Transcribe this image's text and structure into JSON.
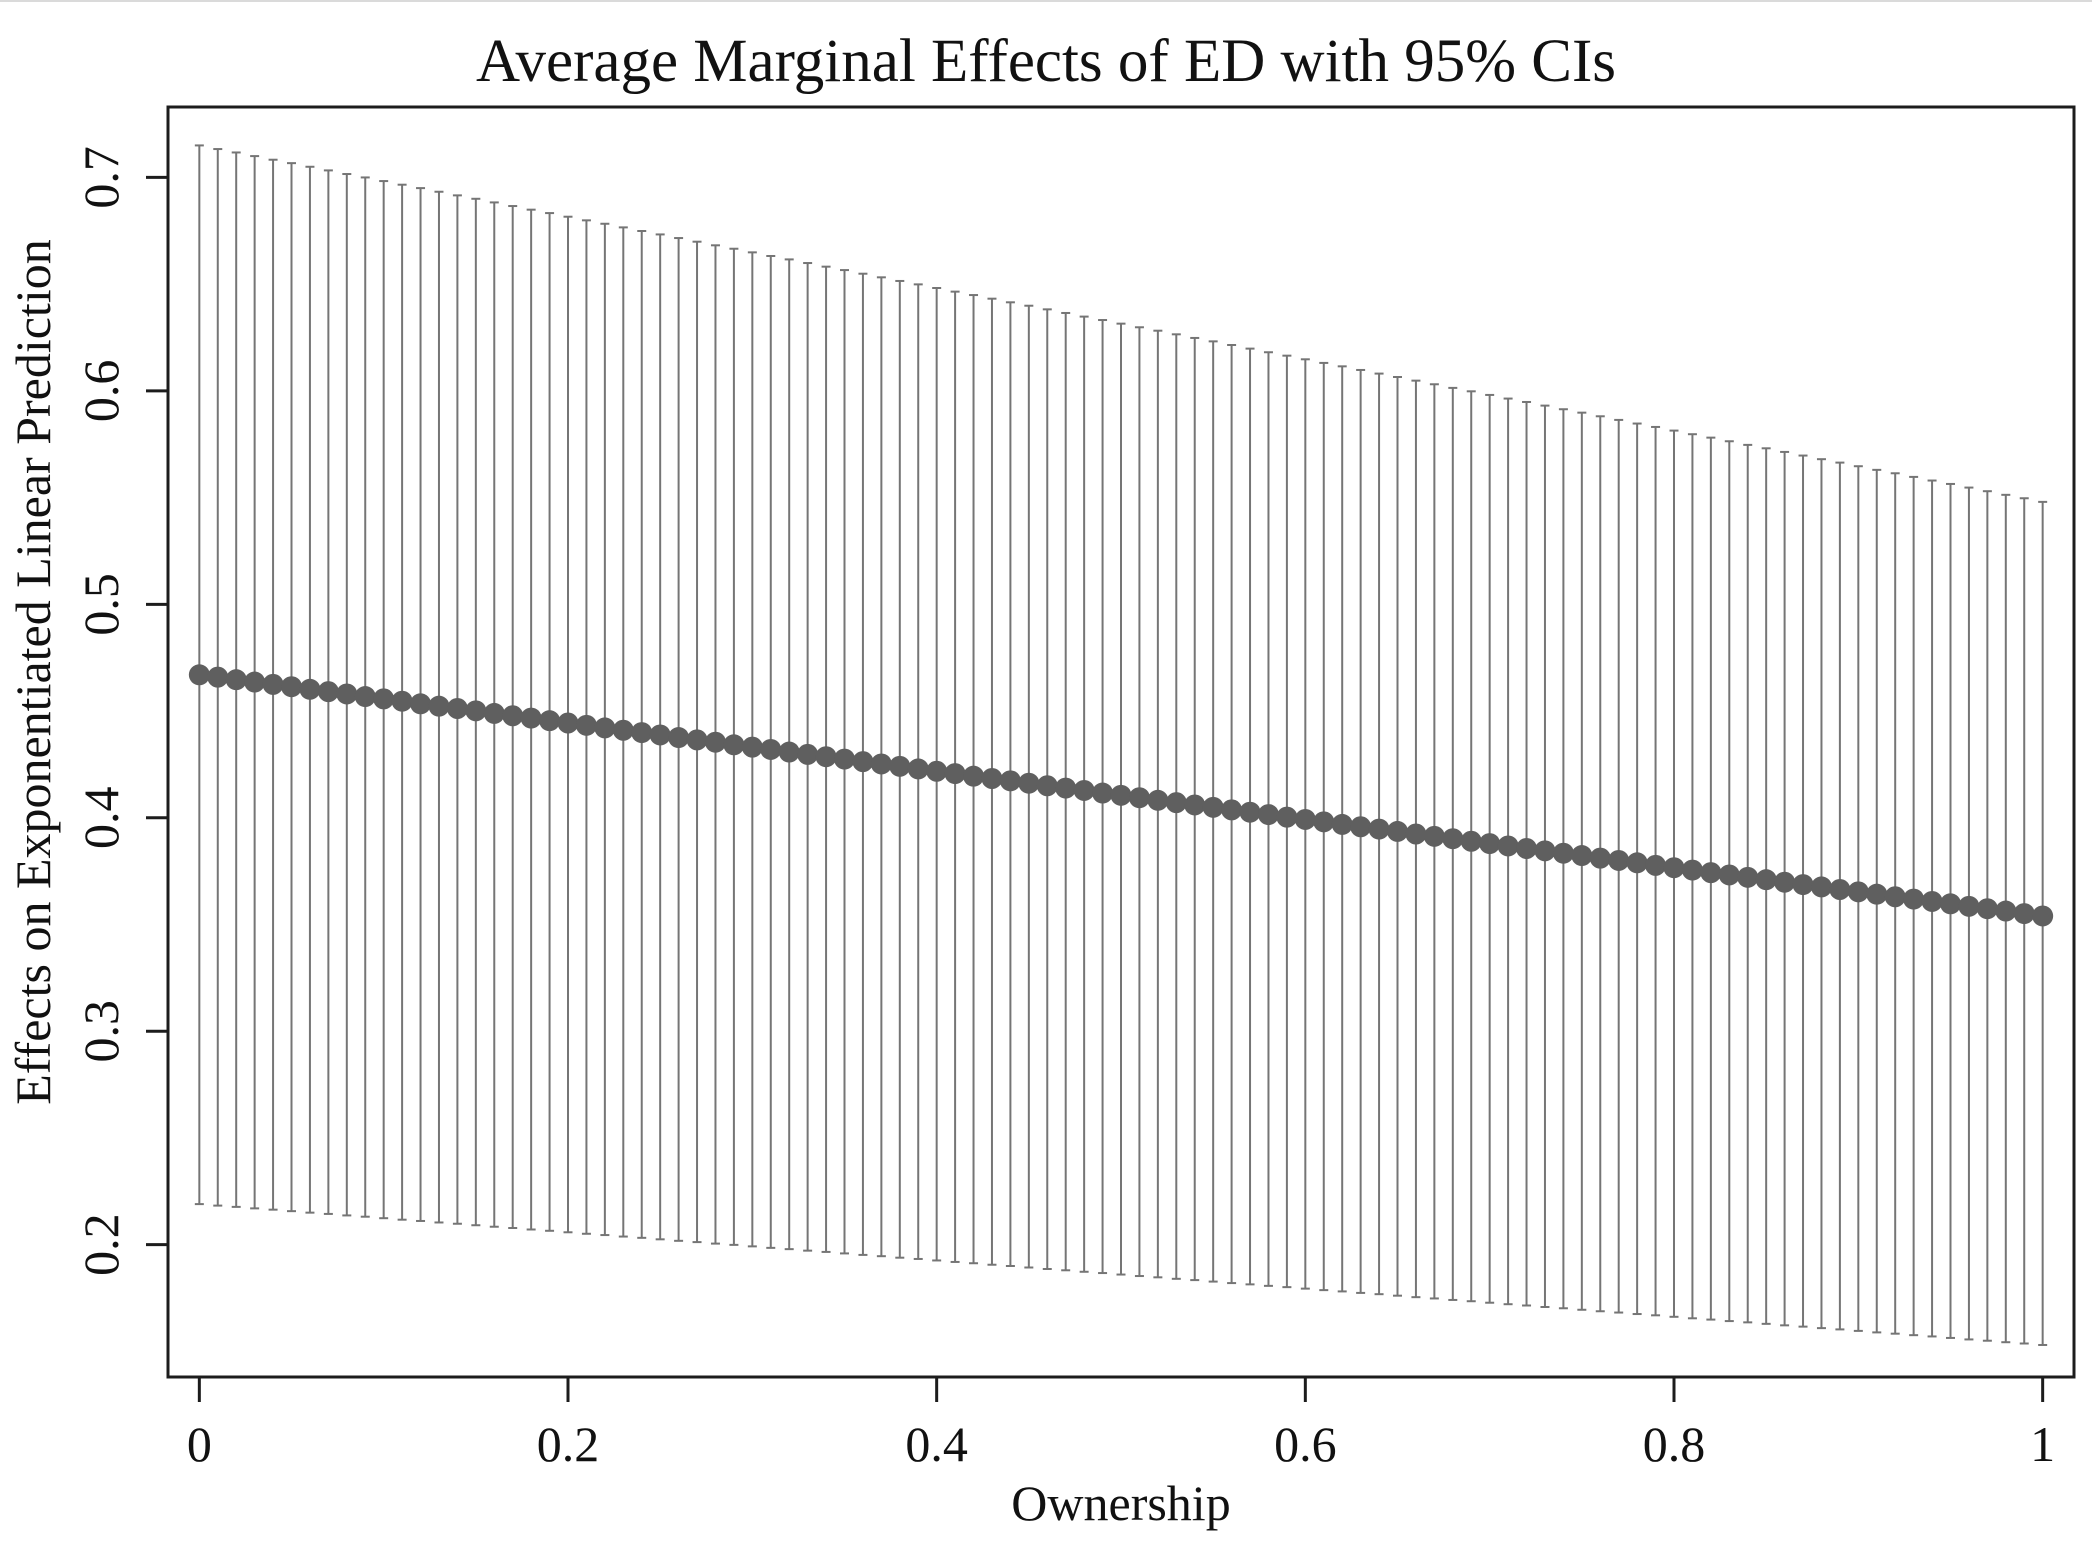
{
  "figure": {
    "title": "Average Marginal Effects of ED with 95% CIs"
  },
  "chart_data": {
    "type": "scatter",
    "subtype": "point_estimates_with_95ci_spikes",
    "title": "Average Marginal Effects of ED with 95% CIs",
    "xlabel": "Ownership",
    "ylabel": "Effects on Exponentiated Linear Prediction",
    "xlim": [
      -0.017,
      1.017
    ],
    "ylim": [
      0.138,
      0.733
    ],
    "grid": false,
    "legend": false,
    "x_ticks": [
      0,
      0.2,
      0.4,
      0.6,
      0.8,
      1
    ],
    "x_tick_labels": [
      "0",
      "0.2",
      "0.4",
      "0.6",
      "0.8",
      "1"
    ],
    "y_ticks": [
      0.7,
      0.6,
      0.5,
      0.4,
      0.3,
      0.2
    ],
    "y_tick_labels": [
      "0.7",
      "0.6",
      "0.5",
      "0.4",
      "0.3",
      "0.2"
    ],
    "n_points": 101,
    "colors": {
      "dot": "#5f5f5f",
      "ci_spike": "#757575",
      "axis": "#1c1c1c",
      "text": "#111111"
    },
    "x": [
      0,
      0.01,
      0.02,
      0.03,
      0.04,
      0.05,
      0.06,
      0.07,
      0.08,
      0.09,
      0.1,
      0.11,
      0.12,
      0.13,
      0.14,
      0.15,
      0.16,
      0.17,
      0.18,
      0.19,
      0.2,
      0.21,
      0.22,
      0.23,
      0.24,
      0.25,
      0.26,
      0.27,
      0.28,
      0.29,
      0.3,
      0.31,
      0.32,
      0.33,
      0.34,
      0.35,
      0.36,
      0.37,
      0.38,
      0.39,
      0.4,
      0.41,
      0.42,
      0.43,
      0.44,
      0.45,
      0.46,
      0.47,
      0.48,
      0.49,
      0.5,
      0.51,
      0.52,
      0.53,
      0.54,
      0.55,
      0.56,
      0.57,
      0.58,
      0.59,
      0.6,
      0.61,
      0.62,
      0.63,
      0.64,
      0.65,
      0.66,
      0.67,
      0.68,
      0.69,
      0.7,
      0.71,
      0.72,
      0.73,
      0.74,
      0.75,
      0.76,
      0.77,
      0.78,
      0.79,
      0.8,
      0.81,
      0.82,
      0.83,
      0.84,
      0.85,
      0.86,
      0.87,
      0.88,
      0.89,
      0.9,
      0.91,
      0.92,
      0.93,
      0.94,
      0.95,
      0.96,
      0.97,
      0.98,
      0.99,
      1
    ],
    "series": [
      {
        "name": "estimate",
        "style": "dots",
        "values": [
          0.467,
          0.4659,
          0.4647,
          0.4636,
          0.4625,
          0.4614,
          0.4602,
          0.4591,
          0.458,
          0.4568,
          0.4557,
          0.4546,
          0.4534,
          0.4523,
          0.4512,
          0.4501,
          0.4489,
          0.4478,
          0.4467,
          0.4455,
          0.4444,
          0.4433,
          0.4421,
          0.441,
          0.4399,
          0.4388,
          0.4376,
          0.4365,
          0.4354,
          0.4342,
          0.4331,
          0.432,
          0.4308,
          0.4297,
          0.4286,
          0.4275,
          0.4263,
          0.4252,
          0.4241,
          0.4229,
          0.4218,
          0.4207,
          0.4195,
          0.4184,
          0.4173,
          0.4162,
          0.415,
          0.4139,
          0.4128,
          0.4116,
          0.4105,
          0.4094,
          0.4082,
          0.4071,
          0.406,
          0.4049,
          0.4037,
          0.4026,
          0.4015,
          0.4003,
          0.3992,
          0.3981,
          0.3969,
          0.3958,
          0.3947,
          0.3936,
          0.3924,
          0.3913,
          0.3902,
          0.389,
          0.3879,
          0.3868,
          0.3856,
          0.3845,
          0.3834,
          0.3823,
          0.3811,
          0.38,
          0.3789,
          0.3777,
          0.3766,
          0.3755,
          0.3743,
          0.3732,
          0.3721,
          0.371,
          0.3698,
          0.3687,
          0.3676,
          0.3664,
          0.3653,
          0.3642,
          0.363,
          0.3619,
          0.3608,
          0.3597,
          0.3585,
          0.3574,
          0.3563,
          0.3551,
          0.354
        ]
      },
      {
        "name": "ci_upper_95",
        "style": "spike_top",
        "values": [
          0.715,
          0.7133,
          0.7117,
          0.71,
          0.7083,
          0.7067,
          0.705,
          0.7033,
          0.7016,
          0.7,
          0.6983,
          0.6966,
          0.695,
          0.6933,
          0.6916,
          0.69,
          0.6883,
          0.6866,
          0.6849,
          0.6833,
          0.6816,
          0.6799,
          0.6783,
          0.6766,
          0.6749,
          0.6733,
          0.6716,
          0.6699,
          0.6682,
          0.6666,
          0.6649,
          0.6632,
          0.6616,
          0.6599,
          0.6582,
          0.6566,
          0.6549,
          0.6532,
          0.6515,
          0.6499,
          0.6482,
          0.6465,
          0.6449,
          0.6432,
          0.6415,
          0.6399,
          0.6382,
          0.6365,
          0.6348,
          0.6332,
          0.6315,
          0.6298,
          0.6282,
          0.6265,
          0.6248,
          0.6232,
          0.6215,
          0.6198,
          0.6181,
          0.6165,
          0.6148,
          0.6131,
          0.6115,
          0.6098,
          0.6081,
          0.6065,
          0.6048,
          0.6031,
          0.6014,
          0.5998,
          0.5981,
          0.5964,
          0.5948,
          0.5931,
          0.5914,
          0.5898,
          0.5881,
          0.5864,
          0.5847,
          0.5831,
          0.5814,
          0.5797,
          0.5781,
          0.5764,
          0.5747,
          0.5731,
          0.5714,
          0.5697,
          0.568,
          0.5664,
          0.5647,
          0.563,
          0.5614,
          0.5597,
          0.558,
          0.5564,
          0.5547,
          0.553,
          0.5513,
          0.5497,
          0.548
        ]
      },
      {
        "name": "ci_lower_95",
        "style": "spike_bottom",
        "values": [
          0.219,
          0.2183,
          0.2177,
          0.217,
          0.2164,
          0.2157,
          0.215,
          0.2144,
          0.2137,
          0.2131,
          0.2124,
          0.2117,
          0.2111,
          0.2104,
          0.2098,
          0.2091,
          0.2084,
          0.2078,
          0.2071,
          0.2065,
          0.2058,
          0.2051,
          0.2045,
          0.2038,
          0.2032,
          0.2025,
          0.2018,
          0.2012,
          0.2005,
          0.1999,
          0.1992,
          0.1985,
          0.1979,
          0.1972,
          0.1966,
          0.1959,
          0.1952,
          0.1946,
          0.1939,
          0.1933,
          0.1926,
          0.1919,
          0.1913,
          0.1906,
          0.19,
          0.1893,
          0.1886,
          0.188,
          0.1873,
          0.1867,
          0.186,
          0.1853,
          0.1847,
          0.184,
          0.1834,
          0.1827,
          0.182,
          0.1814,
          0.1807,
          0.1801,
          0.1794,
          0.1787,
          0.1781,
          0.1774,
          0.1768,
          0.1761,
          0.1754,
          0.1748,
          0.1741,
          0.1735,
          0.1728,
          0.1721,
          0.1715,
          0.1708,
          0.1702,
          0.1695,
          0.1688,
          0.1682,
          0.1675,
          0.1669,
          0.1662,
          0.1655,
          0.1649,
          0.1642,
          0.1636,
          0.1629,
          0.1622,
          0.1616,
          0.1609,
          0.1603,
          0.1596,
          0.1589,
          0.1583,
          0.1576,
          0.157,
          0.1563,
          0.1556,
          0.155,
          0.1543,
          0.1537,
          0.153
        ]
      }
    ]
  }
}
